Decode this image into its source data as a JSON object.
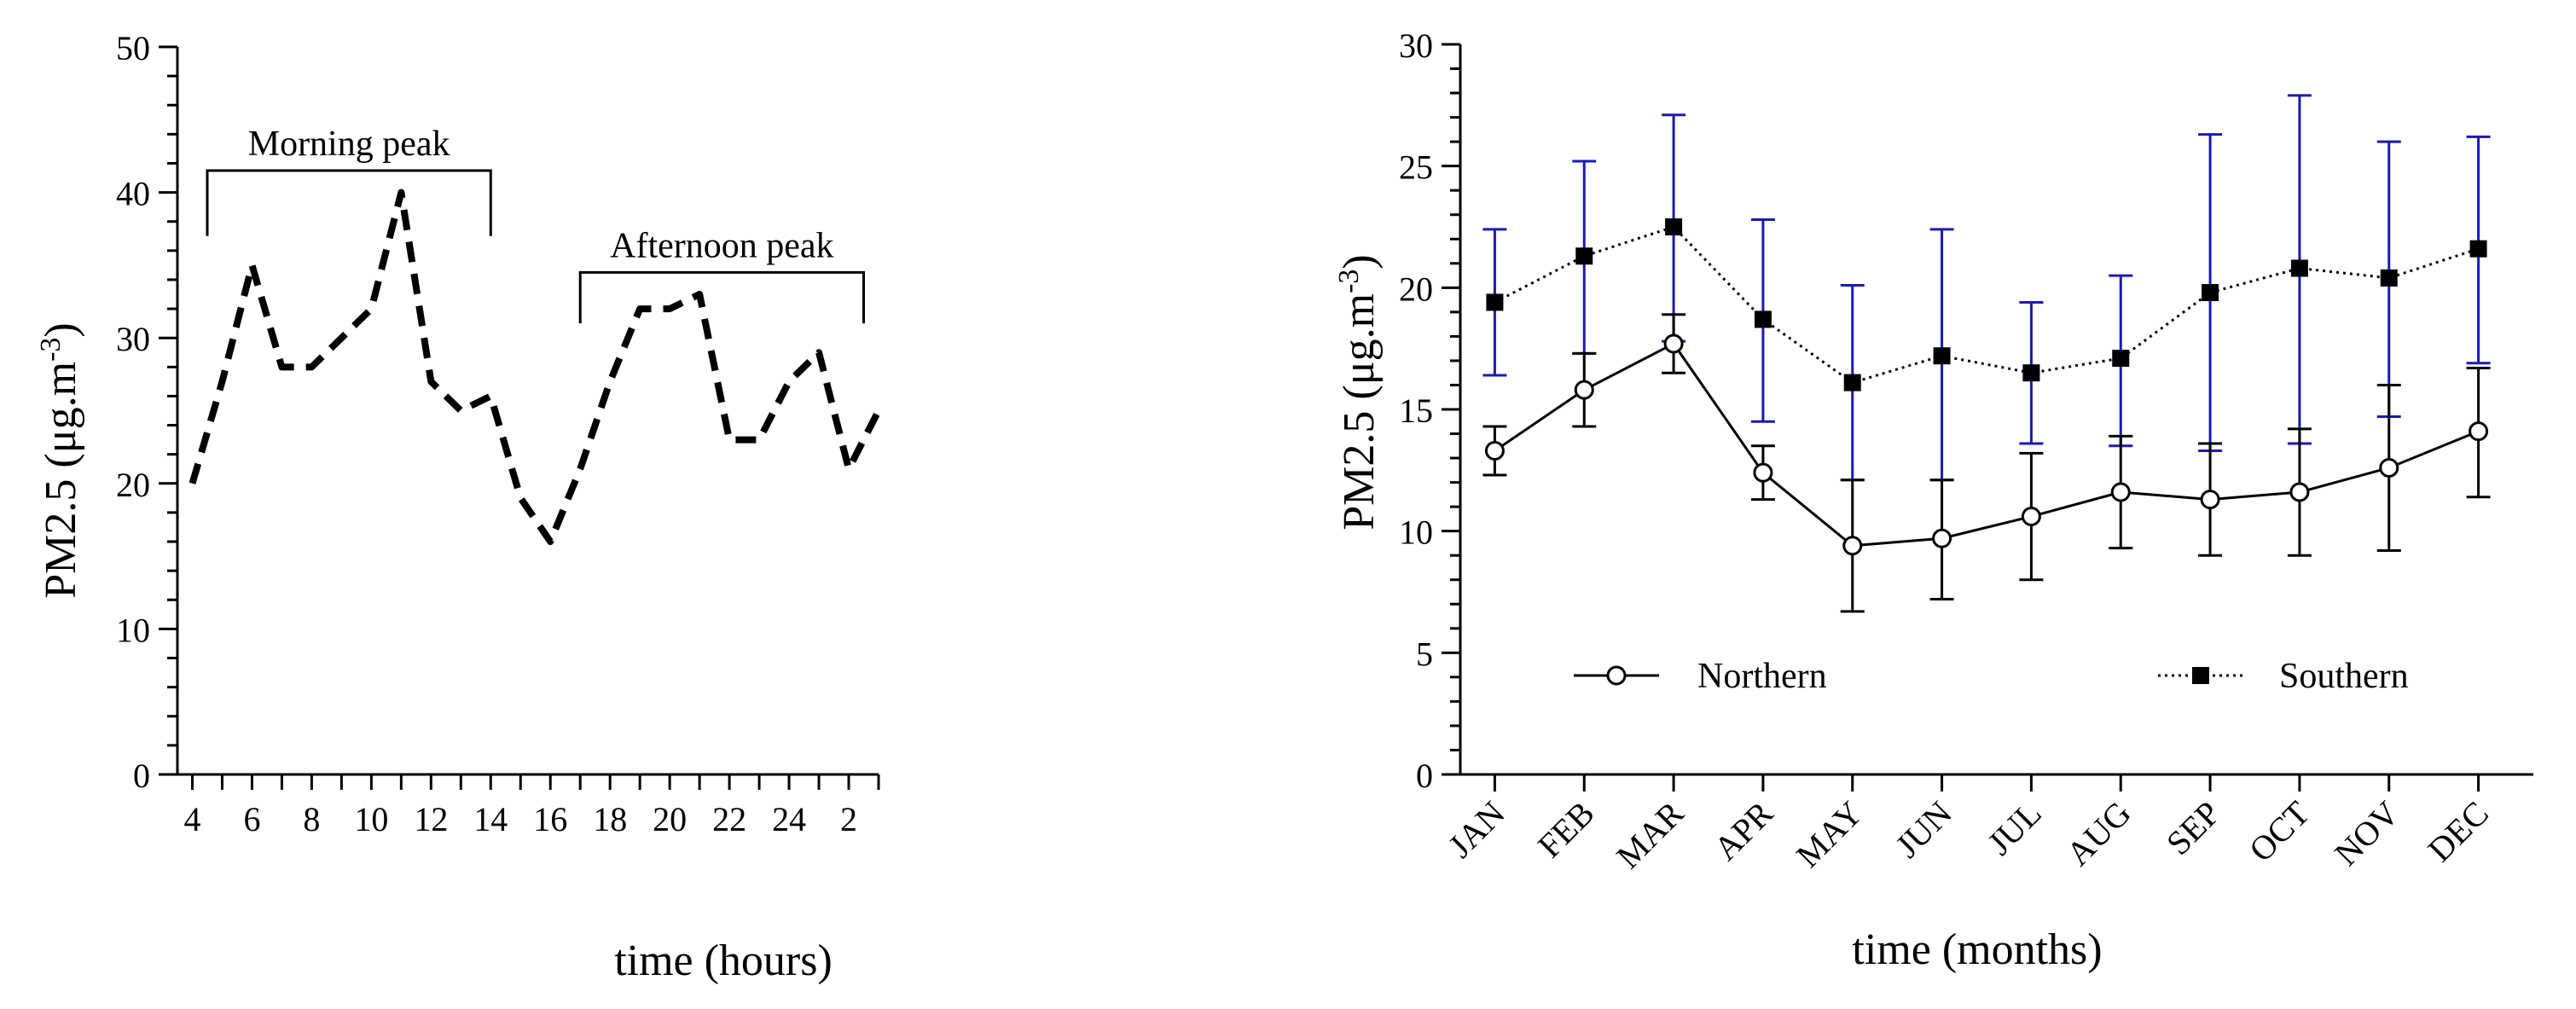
{
  "chart_data": [
    {
      "type": "line",
      "xlabel": "time (hours)",
      "ylabel": "PM2.5 (μg.m",
      "ylabel_sup": "-3",
      "ylabel_close": ")",
      "ylim": [
        0,
        50
      ],
      "yticks": [
        0,
        10,
        20,
        30,
        40,
        50
      ],
      "xtick_labels": [
        "4",
        "6",
        "8",
        "10",
        "12",
        "14",
        "16",
        "18",
        "20",
        "22",
        "24",
        "2"
      ],
      "hours": [
        4,
        5,
        6,
        7,
        8,
        9,
        10,
        11,
        12,
        13,
        14,
        15,
        16,
        17,
        18,
        19,
        20,
        21,
        22,
        23,
        24,
        1,
        2,
        3
      ],
      "series": [
        {
          "values": [
            20,
            27,
            35,
            28,
            28,
            30,
            32,
            40,
            27,
            25,
            26,
            19,
            16,
            21,
            27,
            32,
            32,
            33,
            23,
            23,
            27,
            29,
            21,
            25
          ]
        }
      ],
      "grid": false,
      "annotations": [
        {
          "label": "Morning peak",
          "from_hour": 4.5,
          "to_hour": 14,
          "y": 41.5,
          "drop_to": 37
        },
        {
          "label": "Afternoon peak",
          "from_hour": 17,
          "to_hour": 26.5,
          "y": 34.5,
          "drop_to": 31
        }
      ]
    },
    {
      "type": "line",
      "xlabel": "time (months)",
      "ylabel": "PM2.5 (μg.m",
      "ylabel_sup": "-3",
      "ylabel_close": ")",
      "ylim": [
        0,
        30
      ],
      "yticks": [
        0,
        5,
        10,
        15,
        20,
        25,
        30
      ],
      "categories": [
        "JAN",
        "FEB",
        "MAR",
        "APR",
        "MAY",
        "JUN",
        "JUL",
        "AUG",
        "SEP",
        "OCT",
        "NOV",
        "DEC"
      ],
      "grid": false,
      "legend": "bottom",
      "series": [
        {
          "name": "Northern",
          "values": [
            13.3,
            15.8,
            17.7,
            12.4,
            9.4,
            9.7,
            10.6,
            11.6,
            11.3,
            11.6,
            12.6,
            14.1
          ],
          "err_low": [
            12.3,
            14.3,
            16.5,
            11.3,
            6.7,
            7.2,
            8.0,
            9.3,
            9.0,
            9.0,
            9.2,
            11.4
          ],
          "err_high": [
            14.3,
            17.3,
            18.9,
            13.5,
            12.1,
            12.1,
            13.2,
            13.9,
            13.6,
            14.2,
            16.0,
            16.7
          ],
          "color": "#000000",
          "marker": "open-circle"
        },
        {
          "name": "Southern",
          "values": [
            19.4,
            21.3,
            22.5,
            18.7,
            16.1,
            17.2,
            16.5,
            17.1,
            19.8,
            20.8,
            20.4,
            21.6
          ],
          "err_low": [
            16.4,
            17.3,
            17.8,
            14.5,
            12.1,
            12.1,
            13.6,
            13.5,
            13.3,
            13.6,
            14.7,
            16.9
          ],
          "err_high": [
            22.4,
            25.2,
            27.1,
            22.8,
            20.1,
            22.4,
            19.4,
            20.5,
            26.3,
            27.9,
            26.0,
            26.2
          ],
          "color": "#000000",
          "error_color": "#1a1ab4",
          "marker": "filled-square"
        }
      ]
    }
  ]
}
